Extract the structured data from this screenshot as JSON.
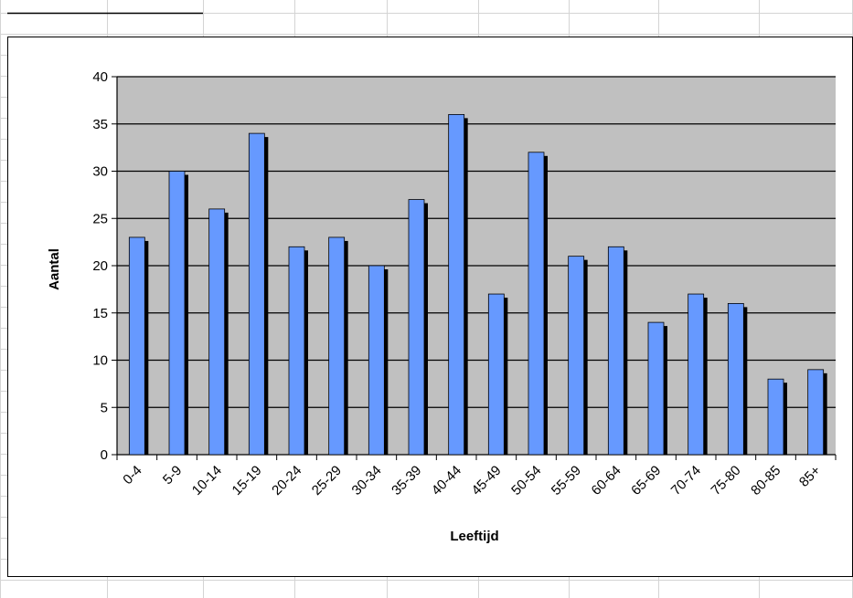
{
  "chart_data": {
    "type": "bar",
    "title": "",
    "xlabel": "Leeftijd",
    "ylabel": "Aantal",
    "ylim": [
      0,
      40
    ],
    "yticks": [
      "0",
      "5",
      "10",
      "15",
      "20",
      "25",
      "30",
      "35",
      "40"
    ],
    "grid": true,
    "legend": "none",
    "categories": [
      "0-4",
      "5-9",
      "10-14",
      "15-19",
      "20-24",
      "25-29",
      "30-34",
      "35-39",
      "40-44",
      "45-49",
      "50-54",
      "55-59",
      "60-64",
      "65-69",
      "70-74",
      "75-80",
      "80-85",
      "85+"
    ],
    "values": [
      23,
      30,
      26,
      34,
      22,
      23,
      20,
      27,
      36,
      17,
      32,
      21,
      22,
      14,
      17,
      16,
      8,
      9
    ]
  },
  "colors": {
    "bar_fill": "#6699ff",
    "bar_shadow": "#000000",
    "plot_background": "#c0c0c0",
    "gridline": "#000000",
    "sheet_gridline": "#d4d4d4"
  }
}
